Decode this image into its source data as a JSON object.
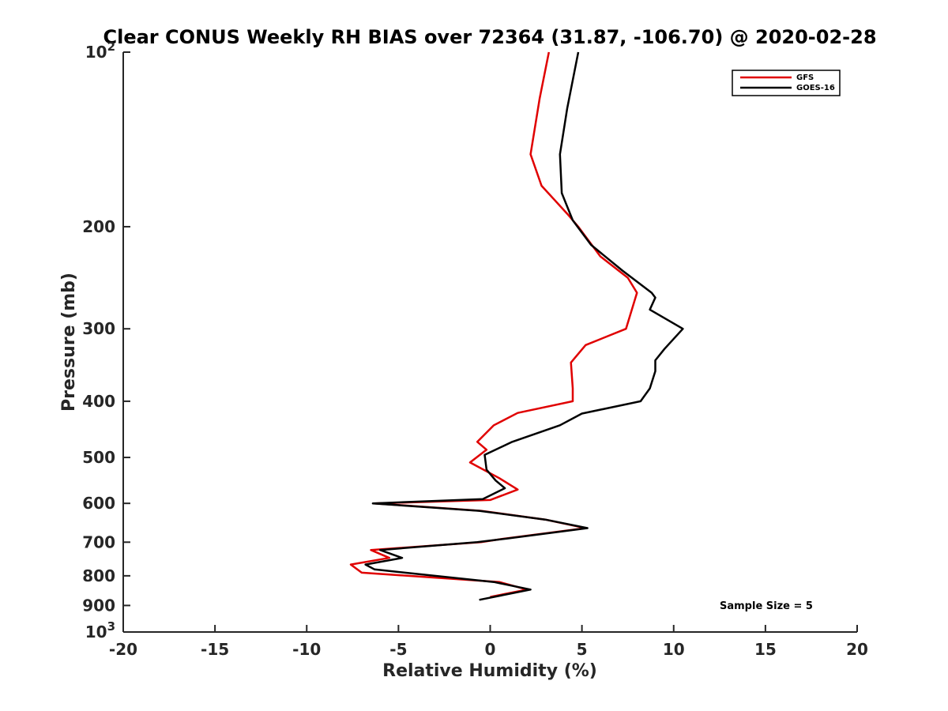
{
  "chart_data": {
    "type": "line",
    "title": "Clear CONUS Weekly RH BIAS over 72364 (31.87, -106.70) @ 2020-02-28",
    "xlabel": "Relative Humidity (%)",
    "ylabel": "Pressure (mb)",
    "xlim": [
      -20,
      20
    ],
    "ylim": [
      100,
      1000
    ],
    "yscale": "log",
    "y_reversed": true,
    "x_ticks": [
      "-20",
      "-15",
      "-10",
      "-5",
      "0",
      "5",
      "10",
      "15",
      "20"
    ],
    "y_ticks": [
      {
        "value": 100,
        "base": "10",
        "sup": "2"
      },
      {
        "value": 200,
        "base": "200",
        "sup": ""
      },
      {
        "value": 300,
        "base": "300",
        "sup": ""
      },
      {
        "value": 400,
        "base": "400",
        "sup": ""
      },
      {
        "value": 500,
        "base": "500",
        "sup": ""
      },
      {
        "value": 600,
        "base": "600",
        "sup": ""
      },
      {
        "value": 700,
        "base": "700",
        "sup": ""
      },
      {
        "value": 800,
        "base": "800",
        "sup": ""
      },
      {
        "value": 900,
        "base": "900",
        "sup": ""
      },
      {
        "value": 1000,
        "base": "10",
        "sup": "3"
      }
    ],
    "legend_position": "top-right",
    "grid": false,
    "series": [
      {
        "name": "GFS",
        "color": "#e00000",
        "points": [
          [
            3.2,
            100
          ],
          [
            2.7,
            120
          ],
          [
            2.2,
            150
          ],
          [
            2.8,
            170
          ],
          [
            4.2,
            190
          ],
          [
            4.8,
            200
          ],
          [
            6.0,
            225
          ],
          [
            7.5,
            245
          ],
          [
            8.0,
            260
          ],
          [
            7.4,
            300
          ],
          [
            5.2,
            320
          ],
          [
            4.4,
            343
          ],
          [
            4.5,
            380
          ],
          [
            4.5,
            400
          ],
          [
            1.5,
            419
          ],
          [
            0.2,
            440
          ],
          [
            -0.7,
            470
          ],
          [
            -0.2,
            485
          ],
          [
            -1.1,
            510
          ],
          [
            0.5,
            543
          ],
          [
            1.5,
            568
          ],
          [
            0.0,
            592
          ],
          [
            -6.3,
            600
          ],
          [
            -0.5,
            618
          ],
          [
            3.0,
            640
          ],
          [
            5.2,
            662
          ],
          [
            0.8,
            690
          ],
          [
            -0.5,
            700
          ],
          [
            -6.5,
            722
          ],
          [
            -5.5,
            745
          ],
          [
            -7.6,
            765
          ],
          [
            -7.0,
            790
          ],
          [
            0.5,
            820
          ],
          [
            2.0,
            845
          ],
          [
            0.0,
            870
          ]
        ]
      },
      {
        "name": "GOES-16",
        "color": "#000000",
        "points": [
          [
            4.8,
            100
          ],
          [
            4.2,
            125
          ],
          [
            3.8,
            150
          ],
          [
            3.9,
            175
          ],
          [
            4.5,
            195
          ],
          [
            5.5,
            215
          ],
          [
            7.2,
            238
          ],
          [
            8.8,
            260
          ],
          [
            9.0,
            265
          ],
          [
            8.7,
            278
          ],
          [
            10.5,
            300
          ],
          [
            9.5,
            325
          ],
          [
            9.0,
            340
          ],
          [
            9.0,
            355
          ],
          [
            8.7,
            380
          ],
          [
            8.2,
            400
          ],
          [
            5.0,
            420
          ],
          [
            3.8,
            440
          ],
          [
            1.2,
            470
          ],
          [
            -0.3,
            495
          ],
          [
            -0.2,
            525
          ],
          [
            0.3,
            548
          ],
          [
            0.8,
            565
          ],
          [
            -0.4,
            590
          ],
          [
            -6.4,
            600
          ],
          [
            -0.6,
            618
          ],
          [
            3.0,
            640
          ],
          [
            5.3,
            662
          ],
          [
            0.9,
            690
          ],
          [
            -0.7,
            700
          ],
          [
            -6.0,
            722
          ],
          [
            -4.8,
            745
          ],
          [
            -6.8,
            765
          ],
          [
            -6.3,
            780
          ],
          [
            0.2,
            820
          ],
          [
            2.2,
            845
          ],
          [
            -0.6,
            880
          ]
        ]
      }
    ],
    "annotation": "Sample Size = 5"
  }
}
